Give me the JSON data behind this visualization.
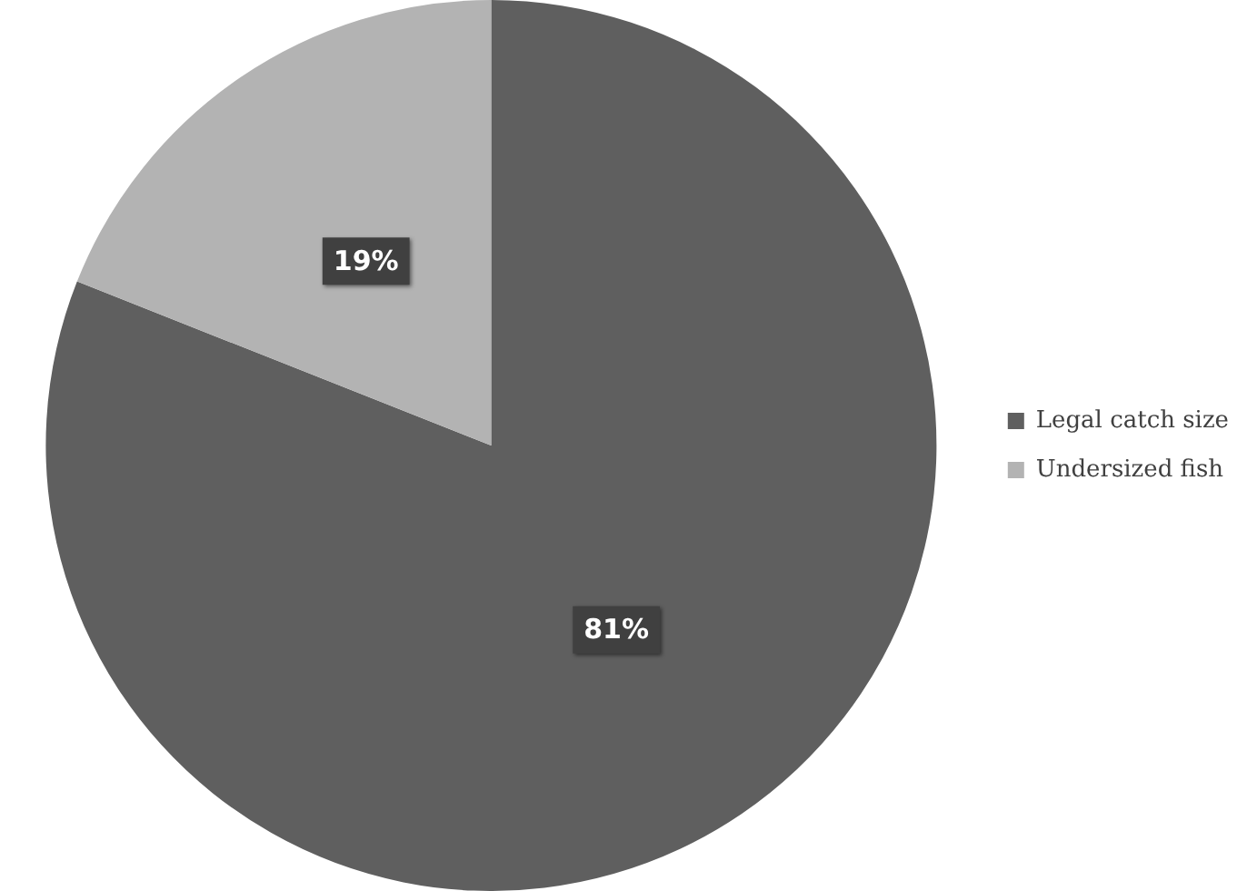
{
  "chart_data": {
    "type": "pie",
    "categories": [
      "Legal catch size",
      "Undersized fish"
    ],
    "values": [
      81,
      19
    ],
    "colors": [
      "#5f5f5f",
      "#b3b3b3"
    ],
    "value_labels": [
      "81%",
      "19%"
    ],
    "legend": "right"
  }
}
